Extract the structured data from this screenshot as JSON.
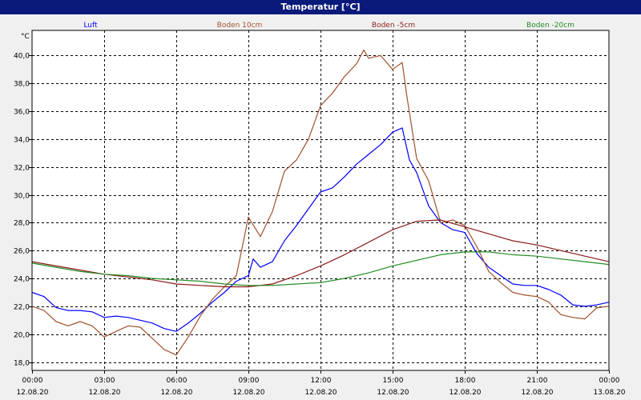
{
  "window": {
    "title": "Temperatur [°C]"
  },
  "chart_data": {
    "type": "line",
    "title": "Temperatur [°C]",
    "ylabel": "°C",
    "xlabel": "",
    "ylim": [
      17.4,
      41.8
    ],
    "xlim": [
      0,
      24
    ],
    "grid": true,
    "legend_position": "top",
    "y_ticks": [
      18,
      20,
      22,
      24,
      26,
      28,
      30,
      32,
      34,
      36,
      38,
      40
    ],
    "y_tick_labels": [
      "18,0",
      "20,0",
      "22,0",
      "24,0",
      "26,0",
      "28,0",
      "30,0",
      "32,0",
      "34,0",
      "36,0",
      "38,0",
      "40,0"
    ],
    "x_ticks": [
      0,
      3,
      6,
      9,
      12,
      15,
      18,
      21,
      24
    ],
    "x_tick_labels": [
      {
        "time": "00:00",
        "date": "12.08.20"
      },
      {
        "time": "03:00",
        "date": "12.08.20"
      },
      {
        "time": "06:00",
        "date": "12.08.20"
      },
      {
        "time": "09:00",
        "date": "12.08.20"
      },
      {
        "time": "12:00",
        "date": "12.08.20"
      },
      {
        "time": "15:00",
        "date": "12.08.20"
      },
      {
        "time": "18:00",
        "date": "12.08.20"
      },
      {
        "time": "21:00",
        "date": "12.08.20"
      },
      {
        "time": "00:00",
        "date": "13.08.20"
      }
    ],
    "series": [
      {
        "name": "Luft",
        "color": "#0000ff",
        "points": [
          [
            0,
            23.0
          ],
          [
            0.5,
            22.7
          ],
          [
            1,
            21.9
          ],
          [
            1.5,
            21.7
          ],
          [
            2,
            21.7
          ],
          [
            2.5,
            21.6
          ],
          [
            3,
            21.2
          ],
          [
            3.5,
            21.3
          ],
          [
            4,
            21.2
          ],
          [
            4.5,
            21.0
          ],
          [
            5,
            20.8
          ],
          [
            5.5,
            20.4
          ],
          [
            6,
            20.2
          ],
          [
            6.5,
            20.8
          ],
          [
            7,
            21.5
          ],
          [
            7.5,
            22.3
          ],
          [
            8,
            23.0
          ],
          [
            8.5,
            23.8
          ],
          [
            9,
            24.2
          ],
          [
            9.2,
            25.4
          ],
          [
            9.5,
            24.8
          ],
          [
            10,
            25.2
          ],
          [
            10.5,
            26.7
          ],
          [
            11,
            27.8
          ],
          [
            11.5,
            29.0
          ],
          [
            12,
            30.2
          ],
          [
            12.5,
            30.5
          ],
          [
            13,
            31.3
          ],
          [
            13.5,
            32.2
          ],
          [
            14,
            32.9
          ],
          [
            14.5,
            33.6
          ],
          [
            15,
            34.5
          ],
          [
            15.4,
            34.8
          ],
          [
            15.7,
            32.5
          ],
          [
            16,
            31.6
          ],
          [
            16.5,
            29.2
          ],
          [
            17,
            28.0
          ],
          [
            17.5,
            27.5
          ],
          [
            18,
            27.3
          ],
          [
            18.5,
            25.8
          ],
          [
            19,
            24.8
          ],
          [
            19.5,
            24.2
          ],
          [
            20,
            23.6
          ],
          [
            20.5,
            23.5
          ],
          [
            21,
            23.5
          ],
          [
            21.5,
            23.2
          ],
          [
            22,
            22.8
          ],
          [
            22.5,
            22.1
          ],
          [
            23,
            22.0
          ],
          [
            23.5,
            22.1
          ],
          [
            24,
            22.3
          ]
        ]
      },
      {
        "name": "Boden 10cm",
        "color": "#a0522d",
        "points": [
          [
            0,
            22.0
          ],
          [
            0.5,
            21.7
          ],
          [
            1,
            20.9
          ],
          [
            1.5,
            20.6
          ],
          [
            2,
            20.9
          ],
          [
            2.5,
            20.6
          ],
          [
            3,
            19.8
          ],
          [
            3.5,
            20.2
          ],
          [
            4,
            20.6
          ],
          [
            4.5,
            20.5
          ],
          [
            5,
            19.7
          ],
          [
            5.5,
            18.9
          ],
          [
            6,
            18.5
          ],
          [
            6.5,
            19.8
          ],
          [
            7,
            21.3
          ],
          [
            7.5,
            22.5
          ],
          [
            8,
            23.4
          ],
          [
            8.5,
            24.2
          ],
          [
            9,
            28.4
          ],
          [
            9.5,
            27.0
          ],
          [
            10,
            28.8
          ],
          [
            10.5,
            31.7
          ],
          [
            11,
            32.5
          ],
          [
            11.5,
            34.0
          ],
          [
            12,
            36.4
          ],
          [
            12.5,
            37.3
          ],
          [
            13,
            38.5
          ],
          [
            13.5,
            39.4
          ],
          [
            13.8,
            40.4
          ],
          [
            14,
            39.8
          ],
          [
            14.5,
            40.0
          ],
          [
            15,
            39.0
          ],
          [
            15.4,
            39.5
          ],
          [
            15.6,
            37.0
          ],
          [
            16,
            32.6
          ],
          [
            16.5,
            31.0
          ],
          [
            17,
            28.0
          ],
          [
            17.5,
            28.2
          ],
          [
            18,
            27.8
          ],
          [
            18.5,
            26.3
          ],
          [
            19,
            24.5
          ],
          [
            19.5,
            23.7
          ],
          [
            20,
            23.0
          ],
          [
            20.5,
            22.8
          ],
          [
            21,
            22.7
          ],
          [
            21.5,
            22.3
          ],
          [
            22,
            21.4
          ],
          [
            22.5,
            21.2
          ],
          [
            23,
            21.1
          ],
          [
            23.5,
            21.9
          ],
          [
            24,
            22.0
          ]
        ]
      },
      {
        "name": "Boden -5cm",
        "color": "#8b1a1a",
        "points": [
          [
            0,
            25.2
          ],
          [
            1,
            24.9
          ],
          [
            2,
            24.6
          ],
          [
            3,
            24.3
          ],
          [
            4,
            24.1
          ],
          [
            5,
            23.9
          ],
          [
            6,
            23.6
          ],
          [
            7,
            23.5
          ],
          [
            8,
            23.4
          ],
          [
            9,
            23.4
          ],
          [
            10,
            23.6
          ],
          [
            11,
            24.2
          ],
          [
            12,
            24.9
          ],
          [
            13,
            25.7
          ],
          [
            14,
            26.6
          ],
          [
            15,
            27.5
          ],
          [
            16,
            28.1
          ],
          [
            17,
            28.2
          ],
          [
            18,
            27.7
          ],
          [
            19,
            27.2
          ],
          [
            20,
            26.7
          ],
          [
            21,
            26.4
          ],
          [
            22,
            26.0
          ],
          [
            23,
            25.6
          ],
          [
            24,
            25.2
          ]
        ]
      },
      {
        "name": "Boden -20cm",
        "color": "#228b22",
        "points": [
          [
            0,
            25.1
          ],
          [
            1,
            24.8
          ],
          [
            2,
            24.5
          ],
          [
            3,
            24.3
          ],
          [
            4,
            24.2
          ],
          [
            5,
            24.0
          ],
          [
            6,
            23.9
          ],
          [
            7,
            23.8
          ],
          [
            8,
            23.6
          ],
          [
            9,
            23.5
          ],
          [
            10,
            23.5
          ],
          [
            11,
            23.6
          ],
          [
            12,
            23.7
          ],
          [
            13,
            24.0
          ],
          [
            14,
            24.4
          ],
          [
            15,
            24.9
          ],
          [
            16,
            25.3
          ],
          [
            17,
            25.7
          ],
          [
            18,
            25.9
          ],
          [
            19,
            25.9
          ],
          [
            20,
            25.7
          ],
          [
            21,
            25.6
          ],
          [
            22,
            25.4
          ],
          [
            23,
            25.2
          ],
          [
            24,
            25.0
          ]
        ]
      }
    ]
  }
}
